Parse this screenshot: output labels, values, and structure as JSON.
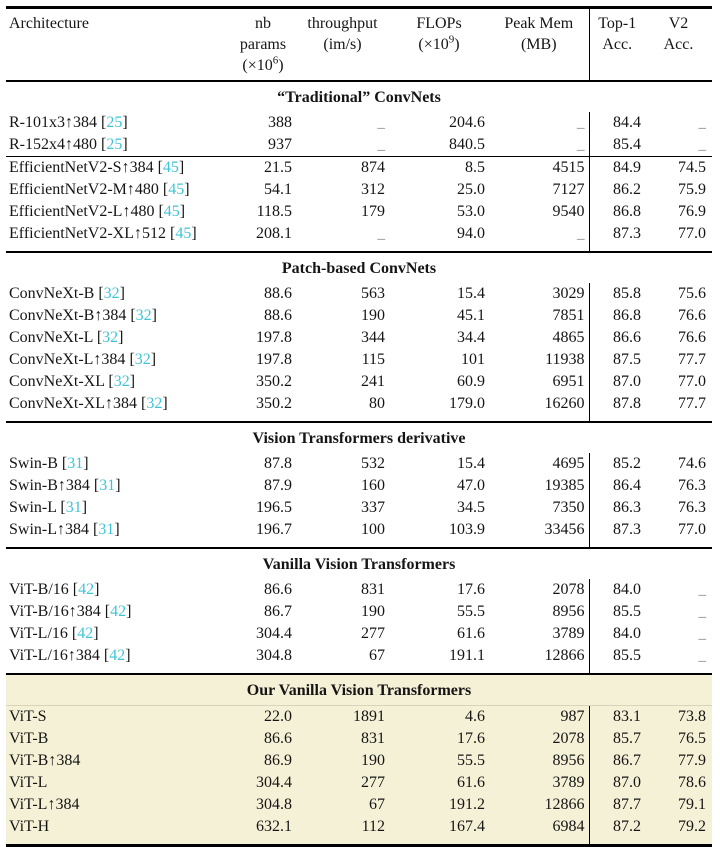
{
  "colors": {
    "ref": "#3fc4d6",
    "highlight_bg": "#f5f1d6",
    "rule": "#000000"
  },
  "table": {
    "headers": {
      "architecture": "Architecture",
      "cols": [
        {
          "label": "nb params",
          "unit_pre": "(×10",
          "unit_sup": "6",
          "unit_post": ")"
        },
        {
          "label": "throughput",
          "unit_pre": "(im/s)"
        },
        {
          "label": "FLOPs",
          "unit_pre": "(×10",
          "unit_sup": "9",
          "unit_post": ")"
        },
        {
          "label": "Peak Mem",
          "unit_pre": "(MB)"
        },
        {
          "label": "Top-1",
          "unit_pre": "Acc."
        },
        {
          "label": "V2",
          "unit_pre": "Acc."
        }
      ]
    },
    "column_keys": [
      "nb-params",
      "throughput",
      "flops",
      "peak-mem",
      "top1-acc",
      "v2-acc"
    ],
    "missing_marker": "_",
    "sections": [
      {
        "title": "“Traditional” ConvNets",
        "highlight": false,
        "groups": [
          {
            "rows": [
              {
                "name": "R-101x3↑384",
                "ref": "25",
                "values": [
                  "388",
                  "_",
                  "204.6",
                  "_",
                  "84.4",
                  "_"
                ]
              },
              {
                "name": "R-152x4↑480",
                "ref": "25",
                "values": [
                  "937",
                  "_",
                  "840.5",
                  "_",
                  "85.4",
                  "_"
                ]
              }
            ]
          },
          {
            "rows": [
              {
                "name": "EfficientNetV2-S↑384",
                "ref": "45",
                "values": [
                  "21.5",
                  "874",
                  "8.5",
                  "4515",
                  "84.9",
                  "74.5"
                ]
              },
              {
                "name": "EfficientNetV2-M↑480",
                "ref": "45",
                "values": [
                  "54.1",
                  "312",
                  "25.0",
                  "7127",
                  "86.2",
                  "75.9"
                ]
              },
              {
                "name": "EfficientNetV2-L↑480",
                "ref": "45",
                "values": [
                  "118.5",
                  "179",
                  "53.0",
                  "9540",
                  "86.8",
                  "76.9"
                ]
              },
              {
                "name": "EfficientNetV2-XL↑512",
                "ref": "45",
                "values": [
                  "208.1",
                  "_",
                  "94.0",
                  "_",
                  "87.3",
                  "77.0"
                ]
              }
            ]
          }
        ]
      },
      {
        "title": "Patch-based ConvNets",
        "highlight": false,
        "groups": [
          {
            "rows": [
              {
                "name": "ConvNeXt-B",
                "ref": "32",
                "values": [
                  "88.6",
                  "563",
                  "15.4",
                  "3029",
                  "85.8",
                  "75.6"
                ]
              },
              {
                "name": "ConvNeXt-B↑384",
                "ref": "32",
                "values": [
                  "88.6",
                  "190",
                  "45.1",
                  "7851",
                  "86.8",
                  "76.6"
                ]
              },
              {
                "name": "ConvNeXt-L",
                "ref": "32",
                "values": [
                  "197.8",
                  "344",
                  "34.4",
                  "4865",
                  "86.6",
                  "76.6"
                ]
              },
              {
                "name": "ConvNeXt-L↑384",
                "ref": "32",
                "values": [
                  "197.8",
                  "115",
                  "101",
                  "11938",
                  "87.5",
                  "77.7"
                ]
              },
              {
                "name": "ConvNeXt-XL",
                "ref": "32",
                "values": [
                  "350.2",
                  "241",
                  "60.9",
                  "6951",
                  "87.0",
                  "77.0"
                ]
              },
              {
                "name": "ConvNeXt-XL↑384",
                "ref": "32",
                "values": [
                  "350.2",
                  "80",
                  "179.0",
                  "16260",
                  "87.8",
                  "77.7"
                ]
              }
            ]
          }
        ]
      },
      {
        "title": "Vision Transformers derivative",
        "highlight": false,
        "groups": [
          {
            "rows": [
              {
                "name": "Swin-B",
                "ref": "31",
                "values": [
                  "87.8",
                  "532",
                  "15.4",
                  "4695",
                  "85.2",
                  "74.6"
                ]
              },
              {
                "name": "Swin-B↑384",
                "ref": "31",
                "values": [
                  "87.9",
                  "160",
                  "47.0",
                  "19385",
                  "86.4",
                  "76.3"
                ]
              },
              {
                "name": "Swin-L",
                "ref": "31",
                "values": [
                  "196.5",
                  "337",
                  "34.5",
                  "7350",
                  "86.3",
                  "76.3"
                ]
              },
              {
                "name": "Swin-L↑384",
                "ref": "31",
                "values": [
                  "196.7",
                  "100",
                  "103.9",
                  "33456",
                  "87.3",
                  "77.0"
                ]
              }
            ]
          }
        ]
      },
      {
        "title": "Vanilla Vision Transformers",
        "highlight": false,
        "groups": [
          {
            "rows": [
              {
                "name": "ViT-B/16",
                "ref": "42",
                "values": [
                  "86.6",
                  "831",
                  "17.6",
                  "2078",
                  "84.0",
                  "_"
                ]
              },
              {
                "name": "ViT-B/16↑384",
                "ref": "42",
                "values": [
                  "86.7",
                  "190",
                  "55.5",
                  "8956",
                  "85.5",
                  "_"
                ]
              },
              {
                "name": "ViT-L/16",
                "ref": "42",
                "values": [
                  "304.4",
                  "277",
                  "61.6",
                  "3789",
                  "84.0",
                  "_"
                ]
              },
              {
                "name": "ViT-L/16↑384",
                "ref": "42",
                "values": [
                  "304.8",
                  "67",
                  "191.1",
                  "12866",
                  "85.5",
                  "_"
                ]
              }
            ]
          }
        ]
      },
      {
        "title": "Our Vanilla Vision Transformers",
        "highlight": true,
        "groups": [
          {
            "rows": [
              {
                "name": "ViT-S",
                "ref": null,
                "values": [
                  "22.0",
                  "1891",
                  "4.6",
                  "987",
                  "83.1",
                  "73.8"
                ]
              },
              {
                "name": "ViT-B",
                "ref": null,
                "values": [
                  "86.6",
                  "831",
                  "17.6",
                  "2078",
                  "85.7",
                  "76.5"
                ]
              },
              {
                "name": "ViT-B↑384",
                "ref": null,
                "values": [
                  "86.9",
                  "190",
                  "55.5",
                  "8956",
                  "86.7",
                  "77.9"
                ]
              },
              {
                "name": "ViT-L",
                "ref": null,
                "values": [
                  "304.4",
                  "277",
                  "61.6",
                  "3789",
                  "87.0",
                  "78.6"
                ]
              },
              {
                "name": "ViT-L↑384",
                "ref": null,
                "values": [
                  "304.8",
                  "67",
                  "191.2",
                  "12866",
                  "87.7",
                  "79.1"
                ]
              },
              {
                "name": "ViT-H",
                "ref": null,
                "values": [
                  "632.1",
                  "112",
                  "167.4",
                  "6984",
                  "87.2",
                  "79.2"
                ]
              }
            ]
          }
        ]
      }
    ]
  }
}
